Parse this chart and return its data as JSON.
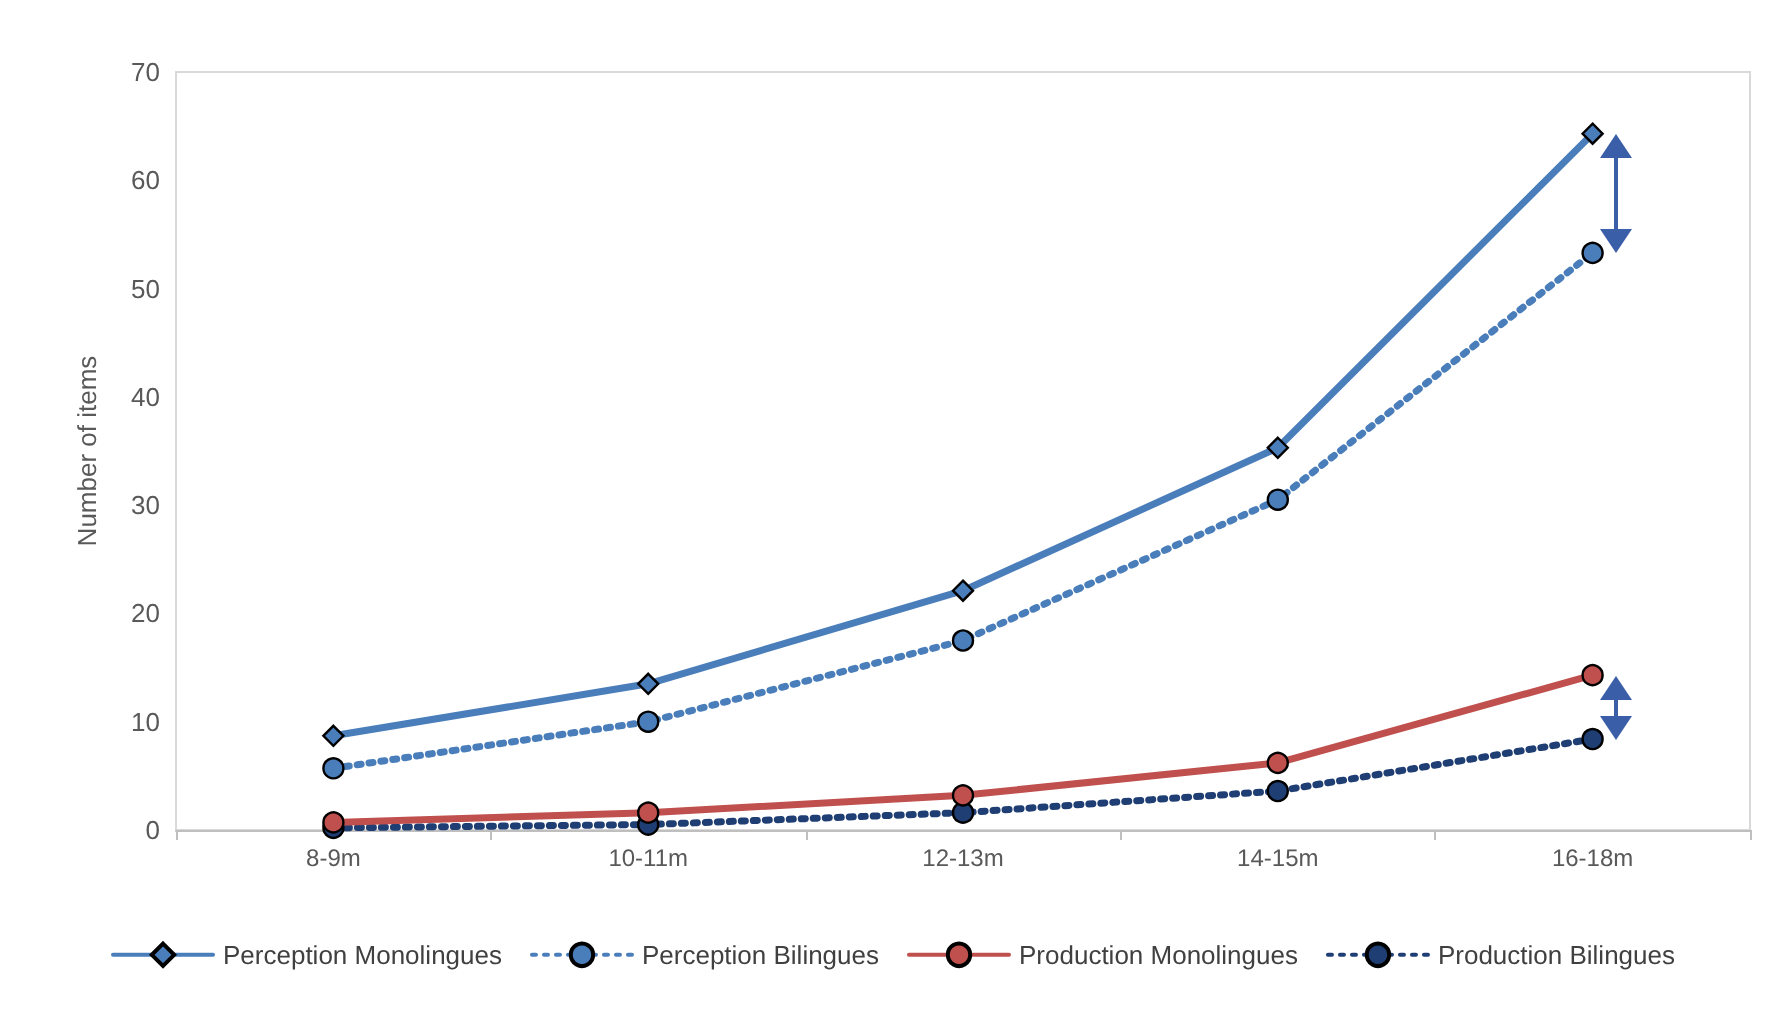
{
  "chart_data": {
    "type": "line",
    "ylabel": "Number of items",
    "categories": [
      "8-9m",
      "10-11m",
      "12-13m",
      "14-15m",
      "16-18m"
    ],
    "series": [
      {
        "name": "Perception Monolingues",
        "color": "#4a7ebb",
        "marker": "diamond",
        "line_style": "solid",
        "values": [
          8.7,
          13.5,
          22.1,
          35.3,
          64.3
        ]
      },
      {
        "name": "Perception Bilingues",
        "color": "#4a7ebb",
        "marker": "circle",
        "line_style": "dotted",
        "values": [
          5.7,
          10.0,
          17.5,
          30.5,
          53.3
        ]
      },
      {
        "name": "Production Monolingues",
        "color": "#c0504d",
        "marker": "circle",
        "line_style": "solid",
        "values": [
          0.7,
          1.6,
          3.2,
          6.2,
          14.3
        ]
      },
      {
        "name": "Production Bilingues",
        "color": "#1f3e73",
        "marker": "circle",
        "line_style": "dotted",
        "values": [
          0.2,
          0.5,
          1.6,
          3.6,
          8.4
        ]
      }
    ],
    "ylim": [
      0,
      70
    ],
    "yticks": [
      0,
      10,
      20,
      30,
      40,
      50,
      60,
      70
    ],
    "grid": false,
    "legend": "bottom"
  }
}
